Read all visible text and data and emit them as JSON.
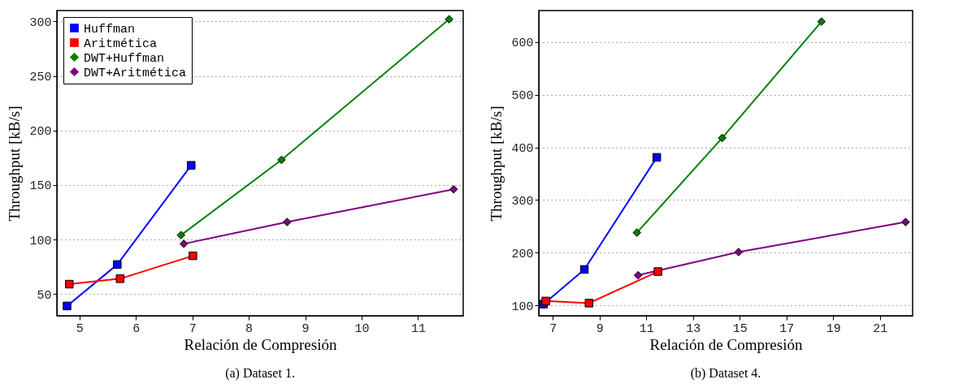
{
  "chart_data": [
    {
      "type": "line",
      "title": "(a) Dataset 1.",
      "xlabel": "Relación de Compresión",
      "ylabel": "Throughput [kB/s]",
      "xlim": [
        4.6,
        11.8
      ],
      "xticks": [
        5,
        6,
        7,
        8,
        9,
        10,
        11
      ],
      "ylim": [
        30,
        310
      ],
      "yticks": [
        50,
        100,
        150,
        200,
        250,
        300
      ],
      "grid": "y",
      "legend": "top left",
      "line_style": "solid",
      "series": [
        {
          "name": "Huffman",
          "color": "#0000ff",
          "marker": "square",
          "x": [
            4.78,
            5.67,
            6.98
          ],
          "values": [
            39,
            77,
            168
          ]
        },
        {
          "name": "Aritmética",
          "color": "#ff0000",
          "marker": "square",
          "x": [
            4.82,
            5.72,
            7.01
          ],
          "values": [
            59,
            64,
            85
          ]
        },
        {
          "name": "DWT+Huffman",
          "color": "#008000",
          "marker": "diamond",
          "x": [
            6.8,
            8.58,
            11.55
          ],
          "values": [
            104,
            173,
            302
          ]
        },
        {
          "name": "DWT+Aritmética",
          "color": "#800080",
          "marker": "diamond",
          "x": [
            6.85,
            8.68,
            11.63
          ],
          "values": [
            96,
            116,
            146
          ]
        }
      ]
    },
    {
      "type": "line",
      "title": "(b) Dataset 4.",
      "xlabel": "Relación de Compresión",
      "ylabel": "Throughput [kB/s]",
      "xlim": [
        6.4,
        22.4
      ],
      "xticks": [
        7,
        9,
        11,
        13,
        15,
        17,
        19,
        21
      ],
      "ylim": [
        80,
        660
      ],
      "yticks": [
        100,
        200,
        300,
        400,
        500,
        600
      ],
      "grid": "y",
      "legend": "top left",
      "line_style": "solid",
      "series": [
        {
          "name": "Huffman",
          "color": "#0000ff",
          "marker": "square",
          "x": [
            6.6,
            8.35,
            11.45
          ],
          "values": [
            102,
            168,
            381
          ]
        },
        {
          "name": "Aritmética",
          "color": "#ff0000",
          "marker": "square",
          "x": [
            6.7,
            8.55,
            11.5
          ],
          "values": [
            108,
            104,
            164
          ]
        },
        {
          "name": "DWT+Huffman",
          "color": "#008000",
          "marker": "diamond",
          "x": [
            10.6,
            14.25,
            18.5
          ],
          "values": [
            238,
            418,
            639
          ]
        },
        {
          "name": "DWT+Aritmética",
          "color": "#800080",
          "marker": "diamond",
          "x": [
            10.65,
            14.95,
            22.1
          ],
          "values": [
            157,
            201,
            258
          ]
        }
      ]
    }
  ]
}
